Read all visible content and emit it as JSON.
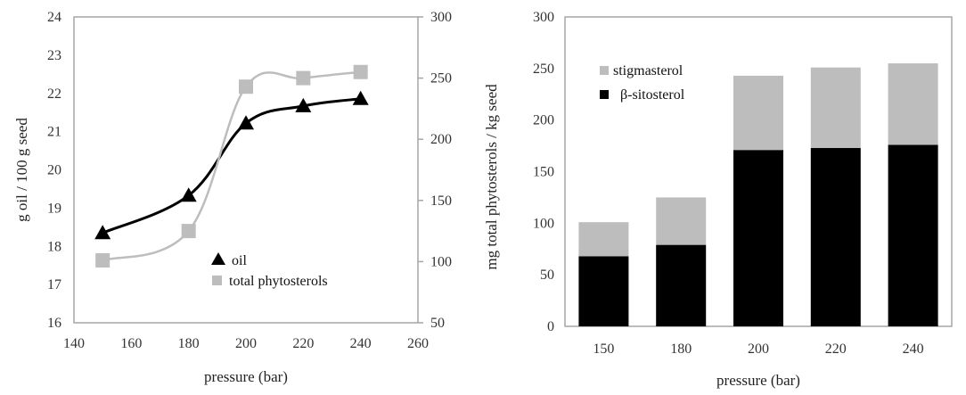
{
  "chart_data": [
    {
      "type": "line",
      "title": "",
      "xlabel": "pressure (bar)",
      "ylabel": "g oil / 100 g seed",
      "y2label": "mg  total phytosterols / kg seed",
      "xlim": [
        140,
        260
      ],
      "xticks": [
        140,
        160,
        180,
        200,
        220,
        240,
        260
      ],
      "ylim": [
        16,
        24
      ],
      "yticks": [
        16,
        17,
        18,
        19,
        20,
        21,
        22,
        23,
        24
      ],
      "y2lim": [
        50,
        300
      ],
      "y2ticks": [
        50,
        100,
        150,
        200,
        250,
        300
      ],
      "grid": false,
      "legend_position": "lower center",
      "x": [
        150,
        180,
        200,
        220,
        240
      ],
      "series": [
        {
          "name": "oil",
          "axis": "left",
          "marker": "triangle",
          "color": "#000000",
          "values": [
            18.35,
            19.33,
            21.22,
            21.67,
            21.86
          ]
        },
        {
          "name": "total phytosterols",
          "axis": "right",
          "marker": "square",
          "color": "#bdbdbd",
          "values": [
            101,
            125,
            243,
            250,
            255
          ]
        }
      ]
    },
    {
      "type": "bar",
      "stacked": true,
      "title": "",
      "xlabel": "pressure (bar)",
      "ylabel": "mg  total phytosterols / kg seed",
      "ylim": [
        0,
        300
      ],
      "yticks": [
        0,
        50,
        100,
        150,
        200,
        250,
        300
      ],
      "grid": false,
      "legend_position": "upper left",
      "categories": [
        "150",
        "180",
        "200",
        "220",
        "240"
      ],
      "series": [
        {
          "name": "β-sitosterol",
          "color": "#000000",
          "values": [
            68,
            79,
            171,
            173,
            176
          ]
        },
        {
          "name": "stigmasterol",
          "color": "#bdbdbd",
          "values": [
            33,
            46,
            72,
            78,
            79
          ]
        }
      ],
      "legend_order": [
        "stigmasterol",
        "β-sitosterol"
      ]
    }
  ]
}
